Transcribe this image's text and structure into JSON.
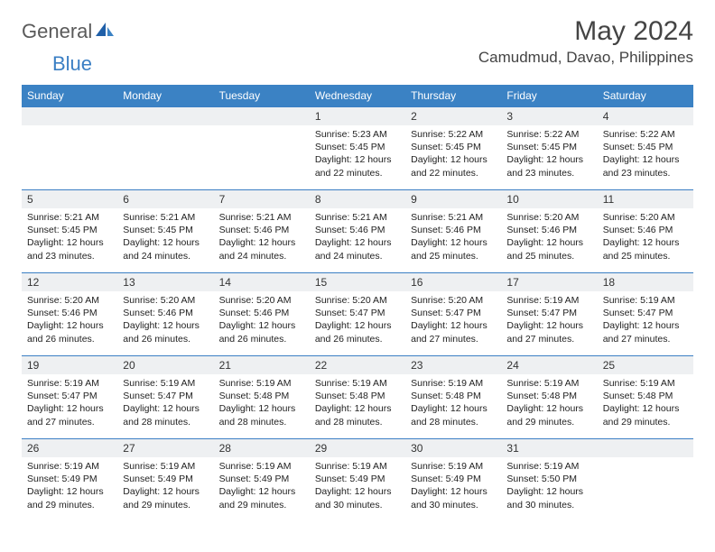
{
  "brand": {
    "part1": "General",
    "part2": "Blue"
  },
  "title": "May 2024",
  "location": "Camudmud, Davao, Philippines",
  "colors": {
    "header_bg": "#3b82c4",
    "header_text": "#ffffff",
    "daynum_bg": "#eef0f2",
    "border": "#3b7fc4",
    "brand_gray": "#5a5a5a",
    "brand_blue": "#3b7fc4"
  },
  "day_labels": [
    "Sunday",
    "Monday",
    "Tuesday",
    "Wednesday",
    "Thursday",
    "Friday",
    "Saturday"
  ],
  "weeks": [
    [
      {
        "n": "",
        "sr": "",
        "ss": "",
        "dl": ""
      },
      {
        "n": "",
        "sr": "",
        "ss": "",
        "dl": ""
      },
      {
        "n": "",
        "sr": "",
        "ss": "",
        "dl": ""
      },
      {
        "n": "1",
        "sr": "Sunrise: 5:23 AM",
        "ss": "Sunset: 5:45 PM",
        "dl": "Daylight: 12 hours and 22 minutes."
      },
      {
        "n": "2",
        "sr": "Sunrise: 5:22 AM",
        "ss": "Sunset: 5:45 PM",
        "dl": "Daylight: 12 hours and 22 minutes."
      },
      {
        "n": "3",
        "sr": "Sunrise: 5:22 AM",
        "ss": "Sunset: 5:45 PM",
        "dl": "Daylight: 12 hours and 23 minutes."
      },
      {
        "n": "4",
        "sr": "Sunrise: 5:22 AM",
        "ss": "Sunset: 5:45 PM",
        "dl": "Daylight: 12 hours and 23 minutes."
      }
    ],
    [
      {
        "n": "5",
        "sr": "Sunrise: 5:21 AM",
        "ss": "Sunset: 5:45 PM",
        "dl": "Daylight: 12 hours and 23 minutes."
      },
      {
        "n": "6",
        "sr": "Sunrise: 5:21 AM",
        "ss": "Sunset: 5:45 PM",
        "dl": "Daylight: 12 hours and 24 minutes."
      },
      {
        "n": "7",
        "sr": "Sunrise: 5:21 AM",
        "ss": "Sunset: 5:46 PM",
        "dl": "Daylight: 12 hours and 24 minutes."
      },
      {
        "n": "8",
        "sr": "Sunrise: 5:21 AM",
        "ss": "Sunset: 5:46 PM",
        "dl": "Daylight: 12 hours and 24 minutes."
      },
      {
        "n": "9",
        "sr": "Sunrise: 5:21 AM",
        "ss": "Sunset: 5:46 PM",
        "dl": "Daylight: 12 hours and 25 minutes."
      },
      {
        "n": "10",
        "sr": "Sunrise: 5:20 AM",
        "ss": "Sunset: 5:46 PM",
        "dl": "Daylight: 12 hours and 25 minutes."
      },
      {
        "n": "11",
        "sr": "Sunrise: 5:20 AM",
        "ss": "Sunset: 5:46 PM",
        "dl": "Daylight: 12 hours and 25 minutes."
      }
    ],
    [
      {
        "n": "12",
        "sr": "Sunrise: 5:20 AM",
        "ss": "Sunset: 5:46 PM",
        "dl": "Daylight: 12 hours and 26 minutes."
      },
      {
        "n": "13",
        "sr": "Sunrise: 5:20 AM",
        "ss": "Sunset: 5:46 PM",
        "dl": "Daylight: 12 hours and 26 minutes."
      },
      {
        "n": "14",
        "sr": "Sunrise: 5:20 AM",
        "ss": "Sunset: 5:46 PM",
        "dl": "Daylight: 12 hours and 26 minutes."
      },
      {
        "n": "15",
        "sr": "Sunrise: 5:20 AM",
        "ss": "Sunset: 5:47 PM",
        "dl": "Daylight: 12 hours and 26 minutes."
      },
      {
        "n": "16",
        "sr": "Sunrise: 5:20 AM",
        "ss": "Sunset: 5:47 PM",
        "dl": "Daylight: 12 hours and 27 minutes."
      },
      {
        "n": "17",
        "sr": "Sunrise: 5:19 AM",
        "ss": "Sunset: 5:47 PM",
        "dl": "Daylight: 12 hours and 27 minutes."
      },
      {
        "n": "18",
        "sr": "Sunrise: 5:19 AM",
        "ss": "Sunset: 5:47 PM",
        "dl": "Daylight: 12 hours and 27 minutes."
      }
    ],
    [
      {
        "n": "19",
        "sr": "Sunrise: 5:19 AM",
        "ss": "Sunset: 5:47 PM",
        "dl": "Daylight: 12 hours and 27 minutes."
      },
      {
        "n": "20",
        "sr": "Sunrise: 5:19 AM",
        "ss": "Sunset: 5:47 PM",
        "dl": "Daylight: 12 hours and 28 minutes."
      },
      {
        "n": "21",
        "sr": "Sunrise: 5:19 AM",
        "ss": "Sunset: 5:48 PM",
        "dl": "Daylight: 12 hours and 28 minutes."
      },
      {
        "n": "22",
        "sr": "Sunrise: 5:19 AM",
        "ss": "Sunset: 5:48 PM",
        "dl": "Daylight: 12 hours and 28 minutes."
      },
      {
        "n": "23",
        "sr": "Sunrise: 5:19 AM",
        "ss": "Sunset: 5:48 PM",
        "dl": "Daylight: 12 hours and 28 minutes."
      },
      {
        "n": "24",
        "sr": "Sunrise: 5:19 AM",
        "ss": "Sunset: 5:48 PM",
        "dl": "Daylight: 12 hours and 29 minutes."
      },
      {
        "n": "25",
        "sr": "Sunrise: 5:19 AM",
        "ss": "Sunset: 5:48 PM",
        "dl": "Daylight: 12 hours and 29 minutes."
      }
    ],
    [
      {
        "n": "26",
        "sr": "Sunrise: 5:19 AM",
        "ss": "Sunset: 5:49 PM",
        "dl": "Daylight: 12 hours and 29 minutes."
      },
      {
        "n": "27",
        "sr": "Sunrise: 5:19 AM",
        "ss": "Sunset: 5:49 PM",
        "dl": "Daylight: 12 hours and 29 minutes."
      },
      {
        "n": "28",
        "sr": "Sunrise: 5:19 AM",
        "ss": "Sunset: 5:49 PM",
        "dl": "Daylight: 12 hours and 29 minutes."
      },
      {
        "n": "29",
        "sr": "Sunrise: 5:19 AM",
        "ss": "Sunset: 5:49 PM",
        "dl": "Daylight: 12 hours and 30 minutes."
      },
      {
        "n": "30",
        "sr": "Sunrise: 5:19 AM",
        "ss": "Sunset: 5:49 PM",
        "dl": "Daylight: 12 hours and 30 minutes."
      },
      {
        "n": "31",
        "sr": "Sunrise: 5:19 AM",
        "ss": "Sunset: 5:50 PM",
        "dl": "Daylight: 12 hours and 30 minutes."
      },
      {
        "n": "",
        "sr": "",
        "ss": "",
        "dl": ""
      }
    ]
  ]
}
